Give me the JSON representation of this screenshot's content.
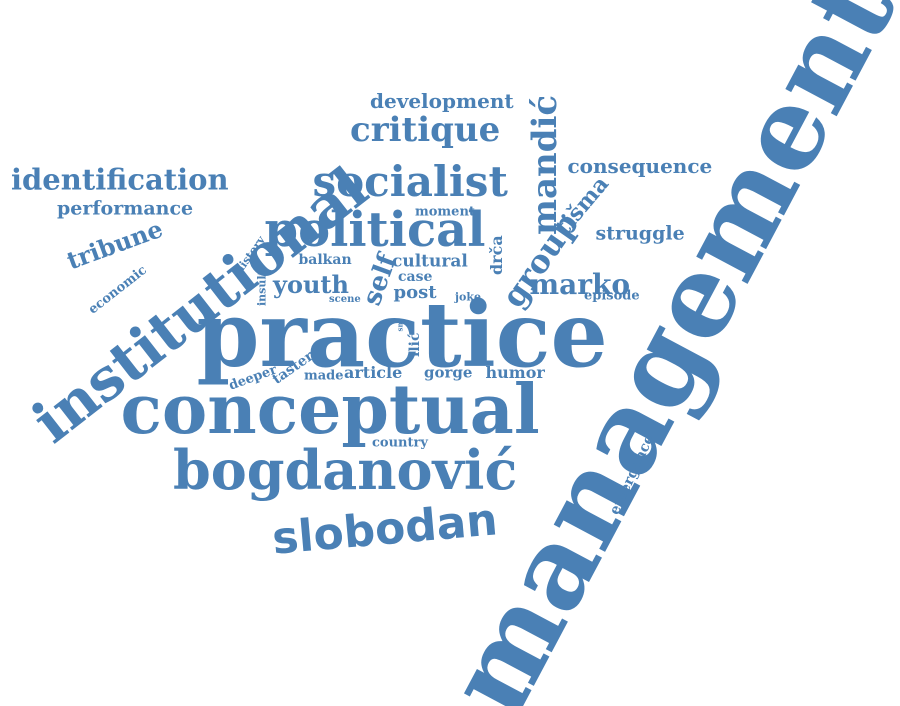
{
  "words": [
    {
      "id": "management",
      "text": "management"
    },
    {
      "id": "practice",
      "text": "practice"
    },
    {
      "id": "conceptual",
      "text": "conceptual"
    },
    {
      "id": "institutional",
      "text": "institutional"
    },
    {
      "id": "bogdanovic",
      "text": "bogdanović"
    },
    {
      "id": "slobodan",
      "text": "slobodan"
    },
    {
      "id": "political",
      "text": "political"
    },
    {
      "id": "socialist",
      "text": "socialist"
    },
    {
      "id": "critique",
      "text": "critique"
    },
    {
      "id": "development",
      "text": "development"
    },
    {
      "id": "identification",
      "text": "identification"
    },
    {
      "id": "performance",
      "text": "performance"
    },
    {
      "id": "tribune",
      "text": "tribune"
    },
    {
      "id": "economic",
      "text": "economic"
    },
    {
      "id": "history",
      "text": "history"
    },
    {
      "id": "insult",
      "text": "insult"
    },
    {
      "id": "mandic",
      "text": "mandić"
    },
    {
      "id": "consequence",
      "text": "consequence"
    },
    {
      "id": "tisma",
      "text": "tišma"
    },
    {
      "id": "group",
      "text": "group"
    },
    {
      "id": "struggle",
      "text": "struggle"
    },
    {
      "id": "drca",
      "text": "drča"
    },
    {
      "id": "moment",
      "text": "moment"
    },
    {
      "id": "balkan",
      "text": "balkan"
    },
    {
      "id": "cultural",
      "text": "cultural"
    },
    {
      "id": "self",
      "text": "self"
    },
    {
      "id": "youth",
      "text": "youth"
    },
    {
      "id": "case",
      "text": "case"
    },
    {
      "id": "post",
      "text": "post"
    },
    {
      "id": "marko",
      "text": "marko"
    },
    {
      "id": "episode",
      "text": "episode"
    },
    {
      "id": "scene",
      "text": "scene"
    },
    {
      "id": "joke",
      "text": "joke"
    },
    {
      "id": "ilic",
      "text": "ilić"
    },
    {
      "id": "sm",
      "text": "sm"
    },
    {
      "id": "deeper",
      "text": "deeper"
    },
    {
      "id": "taster",
      "text": "taster"
    },
    {
      "id": "made",
      "text": "made"
    },
    {
      "id": "article",
      "text": "article"
    },
    {
      "id": "gorge",
      "text": "gorge"
    },
    {
      "id": "humor",
      "text": "humor"
    },
    {
      "id": "country",
      "text": "country"
    },
    {
      "id": "emergence",
      "text": "emergence"
    }
  ],
  "style": {
    "text_color": "#4a80b5",
    "background": "#ffffff"
  }
}
